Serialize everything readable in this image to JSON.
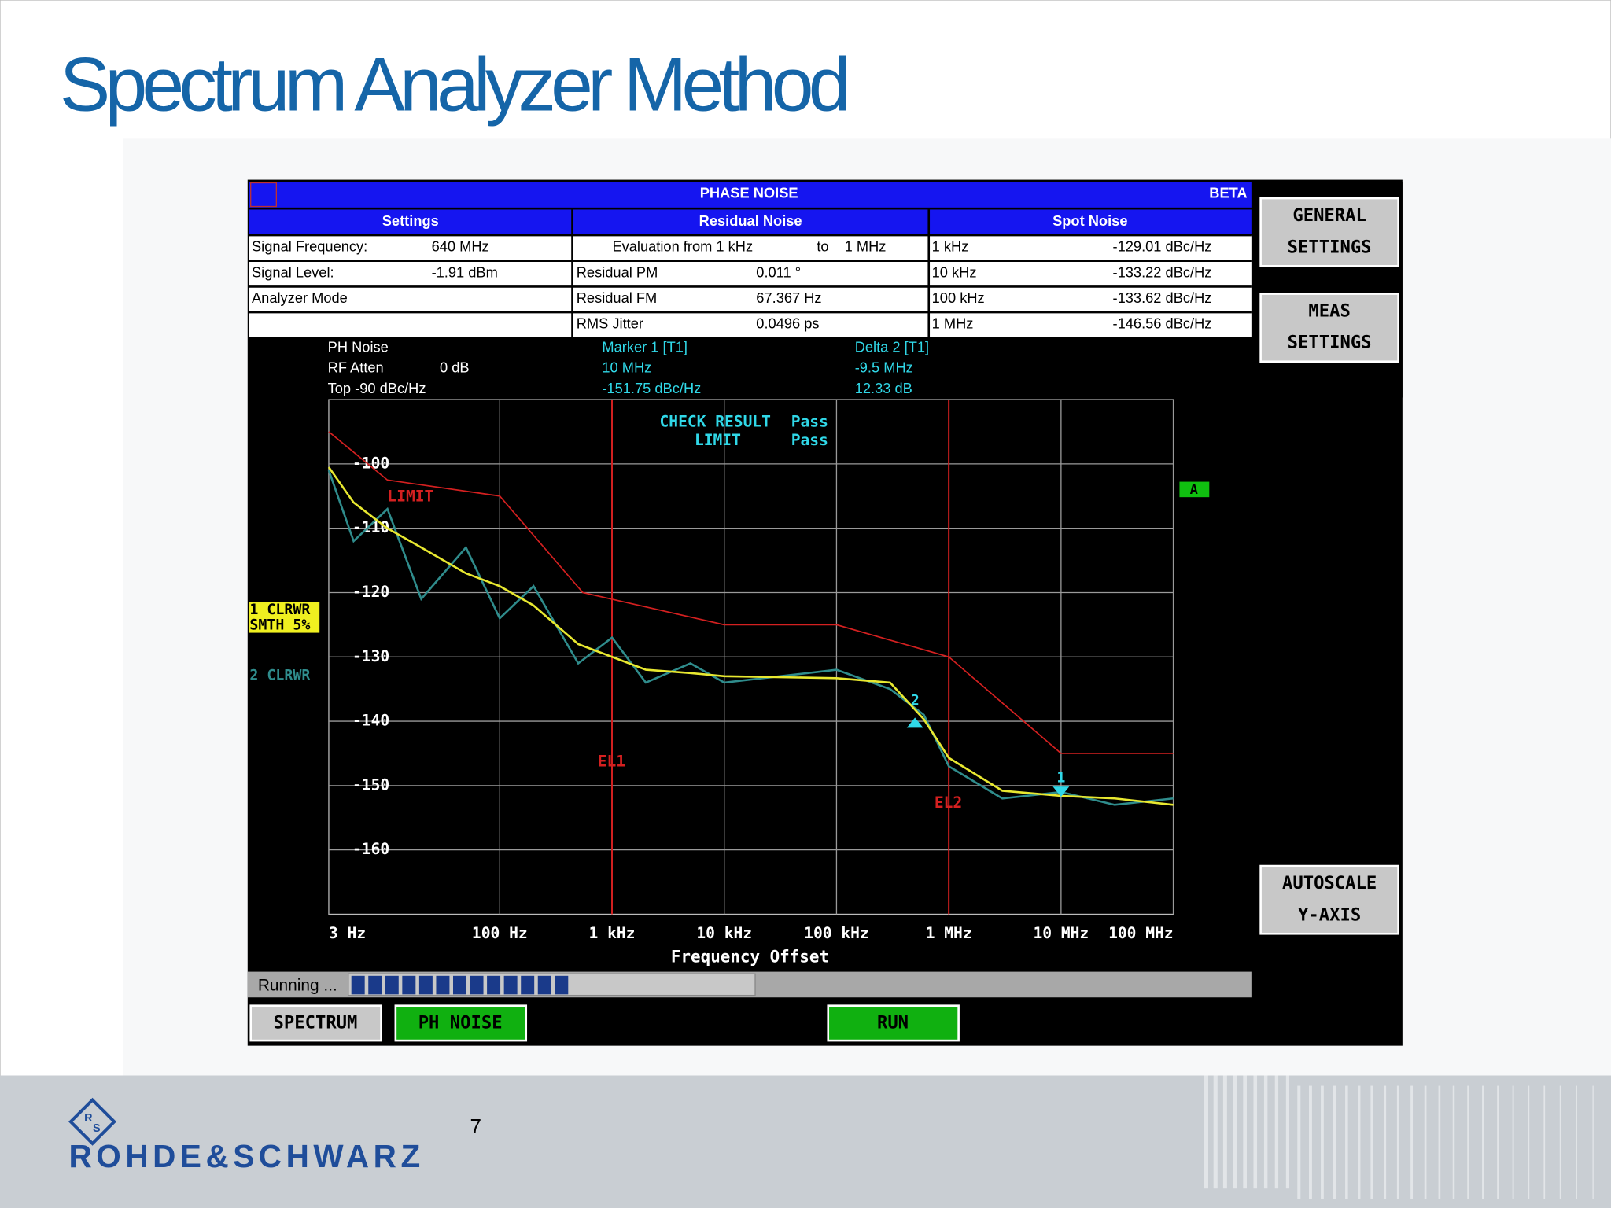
{
  "title": "Spectrum Analyzer Method",
  "page_number": 7,
  "logo": "ROHDE&SCHWARZ",
  "instrument": {
    "header": {
      "title": "PHASE NOISE",
      "badge": "BETA"
    },
    "table": {
      "headers": [
        "Settings",
        "Residual Noise",
        "Spot Noise"
      ],
      "rows": [
        [
          [
            "Signal Frequency:",
            "640 MHz"
          ],
          [
            "Evaluation from  1 kHz",
            "to",
            "1 MHz"
          ],
          [
            "1 kHz",
            "-129.01 dBc/Hz"
          ]
        ],
        [
          [
            "Signal Level:",
            "-1.91 dBm"
          ],
          [
            "Residual PM",
            "0.011 °"
          ],
          [
            "10 kHz",
            "-133.22 dBc/Hz"
          ]
        ],
        [
          [
            "Analyzer Mode"
          ],
          [
            "Residual FM",
            "67.367 Hz"
          ],
          [
            "100 kHz",
            "-133.62 dBc/Hz"
          ]
        ],
        [
          [],
          [
            "RMS Jitter",
            "0.0496 ps"
          ],
          [
            "1 MHz",
            "-146.56 dBc/Hz"
          ]
        ]
      ]
    },
    "info": {
      "settings": [
        [
          "PH Noise"
        ],
        [
          "RF Atten",
          "0 dB"
        ],
        [
          "Top  -90 dBc/Hz"
        ]
      ],
      "marker": [
        "Marker 1 [T1]",
        "10 MHz",
        "-151.75 dBc/Hz"
      ],
      "delta": [
        "Delta 2 [T1]",
        "-9.5 MHz",
        "12.33 dB"
      ]
    },
    "check": [
      [
        "CHECK RESULT",
        "Pass"
      ],
      [
        "LIMIT",
        "Pass"
      ]
    ],
    "trace_labels": {
      "trace1": [
        "1 CLRWR",
        "SMTH 5%"
      ],
      "trace2": "2 CLRWR",
      "screen": "A"
    },
    "buttons": {
      "side": [
        [
          "GENERAL",
          "SETTINGS"
        ],
        [
          "MEAS",
          "SETTINGS"
        ],
        [
          "AUTOSCALE",
          "Y-AXIS"
        ]
      ],
      "bottom": [
        "SPECTRUM",
        "PH NOISE",
        "RUN"
      ]
    },
    "status": "Running ..."
  },
  "chart_data": {
    "type": "line",
    "xlabel": "Frequency Offset",
    "xscale": "log",
    "xlim": [
      3,
      100000000
    ],
    "xticks": [
      {
        "value": 3,
        "label": "3 Hz"
      },
      {
        "value": 100,
        "label": "100 Hz"
      },
      {
        "value": 1000,
        "label": "1 kHz"
      },
      {
        "value": 10000,
        "label": "10 kHz"
      },
      {
        "value": 100000,
        "label": "100 kHz"
      },
      {
        "value": 1000000,
        "label": "1 MHz"
      },
      {
        "value": 10000000,
        "label": "10 MHz"
      },
      {
        "value": 100000000,
        "label": "100 MHz"
      }
    ],
    "ylim": [
      -170,
      -90
    ],
    "yticks": [
      -100,
      -110,
      -120,
      -130,
      -140,
      -150,
      -160
    ],
    "grid": true,
    "series": [
      {
        "name": "LIMIT",
        "color": "#d42020",
        "x": [
          3,
          10,
          100,
          550,
          10000,
          100000,
          1000000,
          10000000,
          100000000
        ],
        "values": [
          -95,
          -102.5,
          -105,
          -120,
          -125,
          -125,
          -130,
          -145,
          -145
        ]
      },
      {
        "name": "2 CLRWR",
        "color": "#2f8c8c",
        "x": [
          3,
          5,
          10,
          20,
          50,
          100,
          200,
          500,
          1000,
          2000,
          5000,
          10000,
          100000,
          300000,
          600000,
          1000000,
          3000000,
          10000000,
          30000000,
          100000000
        ],
        "values": [
          -101,
          -112,
          -107,
          -121,
          -113,
          -124,
          -119,
          -131,
          -127,
          -134,
          -131,
          -134,
          -132,
          -135,
          -139,
          -147,
          -152,
          -151,
          -153,
          -152
        ]
      },
      {
        "name": "1 CLRWR",
        "color": "#e8e830",
        "x": [
          3,
          5,
          10,
          20,
          50,
          100,
          200,
          500,
          1000,
          2000,
          5000,
          10000,
          100000,
          300000,
          600000,
          1000000,
          3000000,
          10000000,
          30000000,
          100000000
        ],
        "values": [
          -100.5,
          -106,
          -110,
          -113,
          -117,
          -119,
          -122,
          -128,
          -130,
          -132,
          -132.5,
          -133,
          -133.3,
          -134,
          -139.7,
          -145.7,
          -150.8,
          -151.6,
          -152,
          -153
        ]
      }
    ],
    "lines": [
      {
        "label": "EL1",
        "x": 1000
      },
      {
        "label": "EL2",
        "x": 1000000
      }
    ],
    "markers": [
      {
        "label": "1",
        "x": 10000000,
        "y": -151.75
      },
      {
        "label": "2",
        "x": 500000,
        "y": -139.42
      }
    ]
  }
}
